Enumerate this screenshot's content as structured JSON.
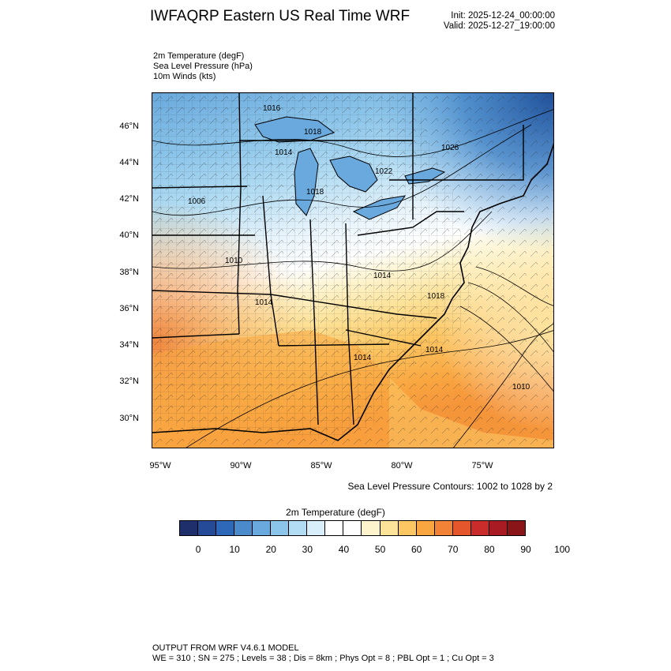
{
  "header": {
    "title": "IWFAQRP Eastern US Real Time WRF",
    "init": "Init: 2025-12-24_00:00:00",
    "valid": "Valid: 2025-12-27_19:00:00"
  },
  "fields": [
    "2m Temperature   (degF)",
    "Sea Level Pressure   (hPa)",
    "10m Winds   (kts)"
  ],
  "map": {
    "lat_labels": [
      "46°N",
      "44°N",
      "42°N",
      "40°N",
      "38°N",
      "36°N",
      "34°N",
      "32°N",
      "30°N"
    ],
    "lon_labels": [
      "95°W",
      "90°W",
      "85°W",
      "80°W",
      "75°W"
    ],
    "pressure_labels": [
      "1016",
      "1018",
      "1014",
      "1022",
      "1026",
      "1018",
      "1006",
      "1010",
      "1014",
      "1018",
      "1014",
      "1014",
      "1014",
      "1010"
    ],
    "contour_note": "Sea Level Pressure Contours: 1002 to 1028 by 2"
  },
  "colorbar": {
    "title": "2m Temperature   (degF)",
    "colors": [
      "#1f2f6b",
      "#254a97",
      "#2e68b8",
      "#4b8bcc",
      "#6aa9dd",
      "#8cc5ea",
      "#b2dcf3",
      "#d8eefa",
      "#ffffff",
      "#ffffff",
      "#fdf3cc",
      "#fde39a",
      "#fcc763",
      "#f9a640",
      "#f28235",
      "#e5562d",
      "#c92c2a",
      "#a81b22",
      "#8a1518"
    ],
    "ticks": [
      "0",
      "10",
      "20",
      "30",
      "40",
      "50",
      "60",
      "70",
      "80",
      "90",
      "100"
    ]
  },
  "footer": {
    "line1": "OUTPUT FROM WRF V4.6.1 MODEL",
    "line2": "WE = 310 ; SN = 275 ; Levels = 38 ; Dis = 8km ; Phys Opt = 8 ; PBL Opt = 1 ; Cu Opt = 3"
  }
}
